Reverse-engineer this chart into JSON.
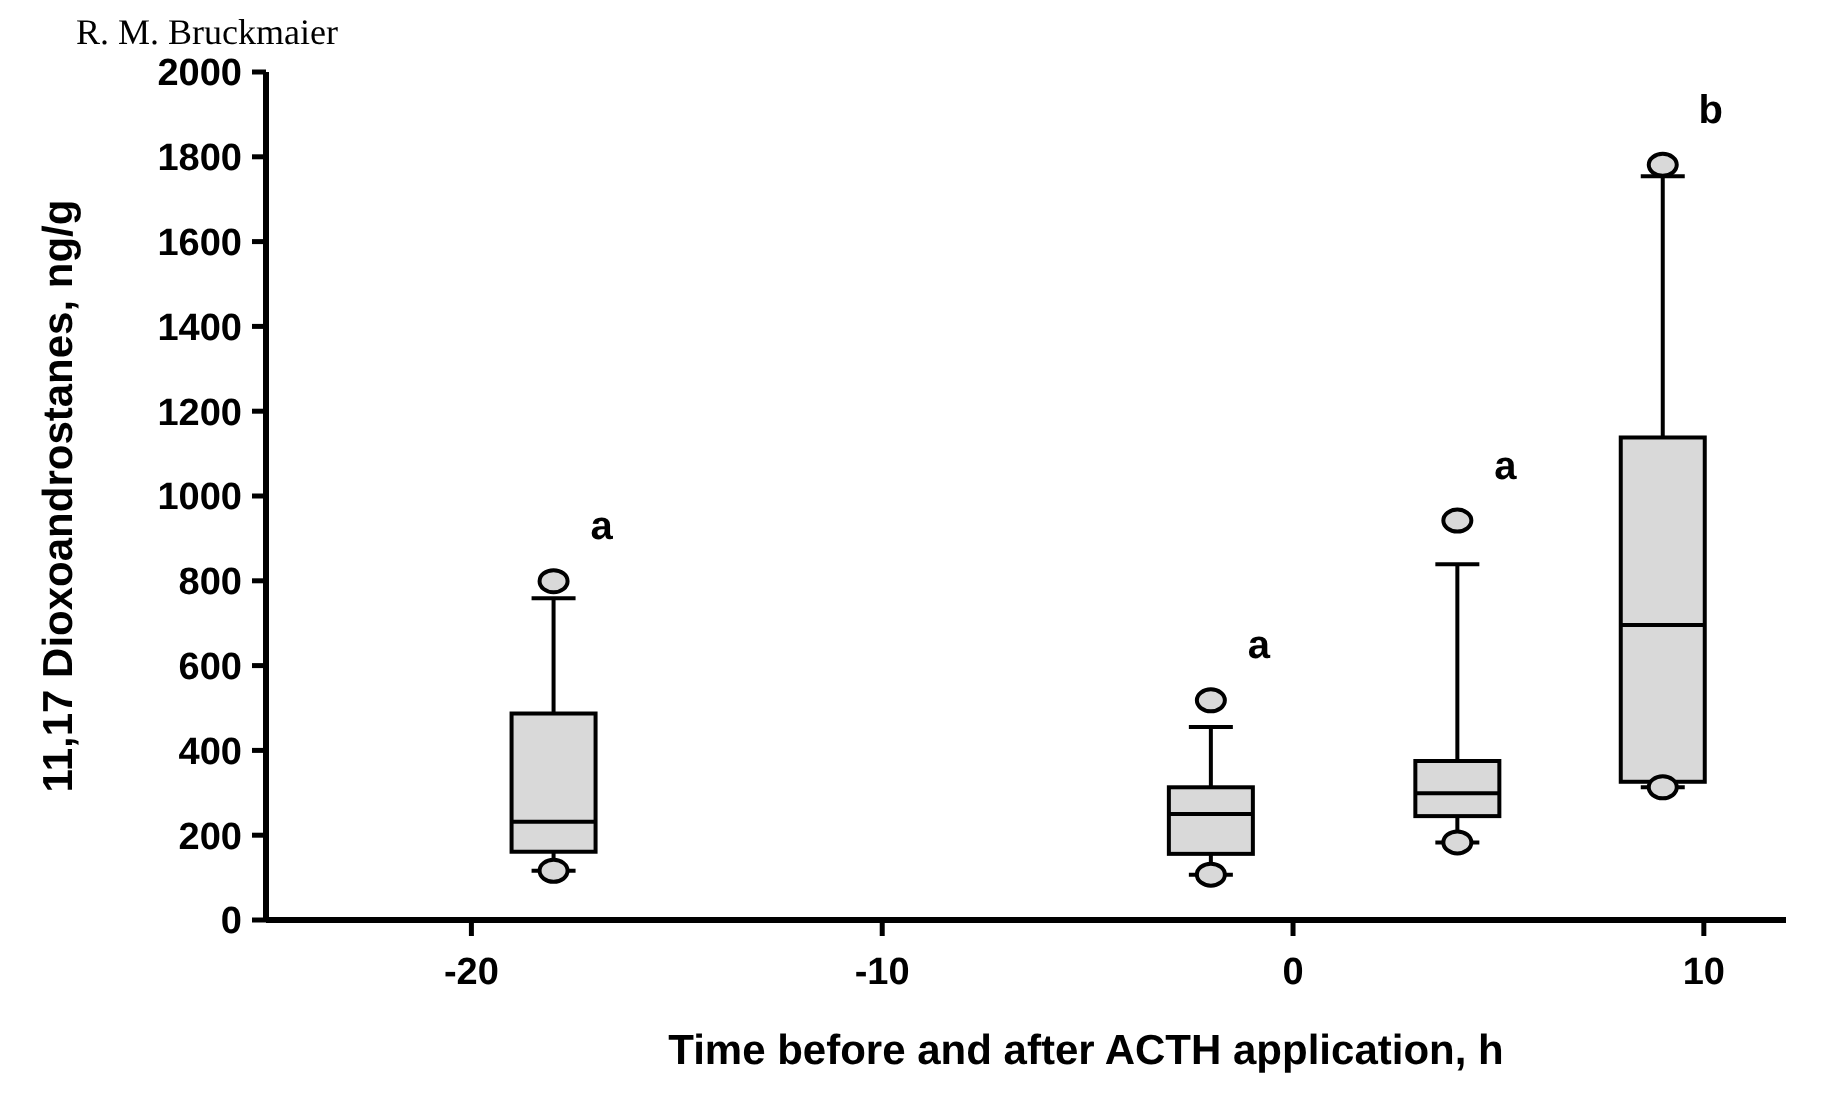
{
  "chart_data": {
    "type": "box",
    "xlabel": "Time before and after ACTH application, h",
    "ylabel": "11,17 Dioxoandrostanes, ng/g",
    "x": [
      -18,
      -2,
      4,
      9
    ],
    "color": "#d9d9d9",
    "boxes": [
      {
        "low": 116,
        "q1": 161,
        "median": 232,
        "q3": 487,
        "high": 759,
        "outliers": [
          799,
          116
        ]
      },
      {
        "low": 107,
        "q1": 156,
        "median": 250,
        "q3": 313,
        "high": 455,
        "outliers": [
          518,
          107
        ]
      },
      {
        "low": 183,
        "q1": 245,
        "median": 299,
        "q3": 375,
        "high": 839,
        "outliers": [
          942,
          183
        ]
      },
      {
        "low": 313,
        "q1": 326,
        "median": 696,
        "q3": 1138,
        "high": 1754,
        "outliers": [
          1781,
          313
        ]
      }
    ],
    "xlim": [
      -25,
      12
    ],
    "xticks": [
      -20,
      -10,
      0,
      10
    ],
    "ylim": [
      0,
      2000
    ],
    "yticks": [
      0,
      200,
      400,
      600,
      800,
      1000,
      1200,
      1400,
      1600,
      1800,
      2000
    ],
    "grid": false,
    "annotations": [
      "R. M. Bruckmaier",
      "a",
      "a",
      "a",
      "b"
    ]
  }
}
